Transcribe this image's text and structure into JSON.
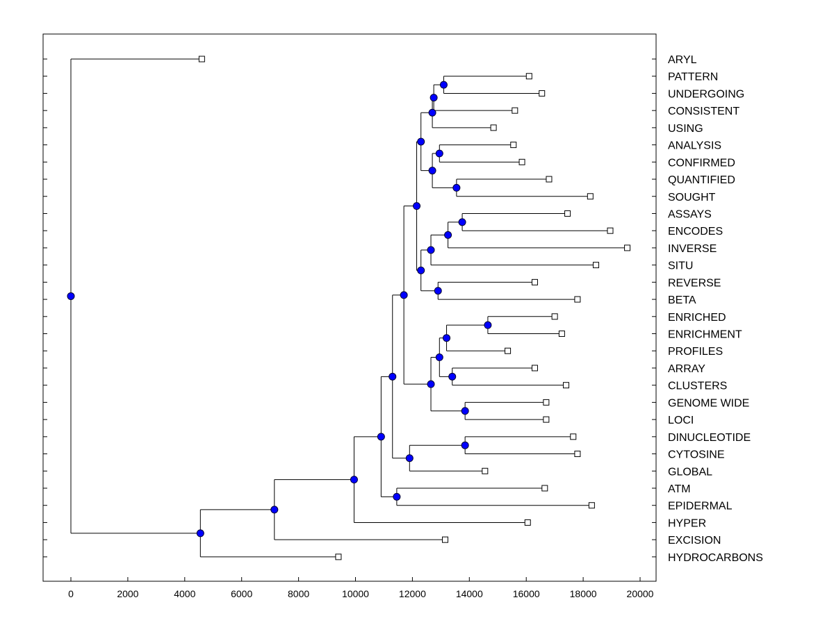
{
  "chart_data": {
    "type": "dendrogram",
    "title": "",
    "xlabel": "",
    "ylabel": "",
    "xlim": [
      -1000,
      21000
    ],
    "xticks": [
      0,
      2000,
      4000,
      6000,
      8000,
      10000,
      12000,
      14000,
      16000,
      18000,
      20000
    ],
    "grid": false,
    "leaves": [
      {
        "name": "ARYL",
        "x": 4600
      },
      {
        "name": "PATTERN",
        "x": 16100
      },
      {
        "name": "UNDERGOING",
        "x": 16550
      },
      {
        "name": "CONSISTENT",
        "x": 15600
      },
      {
        "name": "USING",
        "x": 14850
      },
      {
        "name": "ANALYSIS",
        "x": 15550
      },
      {
        "name": "CONFIRMED",
        "x": 15850
      },
      {
        "name": "QUANTIFIED",
        "x": 16800
      },
      {
        "name": "SOUGHT",
        "x": 18250
      },
      {
        "name": "ASSAYS",
        "x": 17450
      },
      {
        "name": "ENCODES",
        "x": 18950
      },
      {
        "name": "INVERSE",
        "x": 19550
      },
      {
        "name": "SITU",
        "x": 18450
      },
      {
        "name": "REVERSE",
        "x": 16300
      },
      {
        "name": "BETA",
        "x": 17800
      },
      {
        "name": "ENRICHED",
        "x": 17000
      },
      {
        "name": "ENRICHMENT",
        "x": 17250
      },
      {
        "name": "PROFILES",
        "x": 15350
      },
      {
        "name": "ARRAY",
        "x": 16300
      },
      {
        "name": "CLUSTERS",
        "x": 17400
      },
      {
        "name": "GENOME WIDE",
        "x": 16700
      },
      {
        "name": "LOCI",
        "x": 16700
      },
      {
        "name": "DINUCLEOTIDE",
        "x": 17650
      },
      {
        "name": "CYTOSINE",
        "x": 17800
      },
      {
        "name": "GLOBAL",
        "x": 14550
      },
      {
        "name": "ATM",
        "x": 16650
      },
      {
        "name": "EPIDERMAL",
        "x": 18300
      },
      {
        "name": "HYPER",
        "x": 16050
      },
      {
        "name": "EXCISION",
        "x": 13150
      },
      {
        "name": "HYDROCARBONS",
        "x": 9400
      }
    ],
    "merges": [
      {
        "id": "n1",
        "x": 13100,
        "children": [
          "PATTERN",
          "UNDERGOING"
        ]
      },
      {
        "id": "n2",
        "x": 12750,
        "children": [
          "n1",
          "CONSISTENT"
        ]
      },
      {
        "id": "n3",
        "x": 12700,
        "children": [
          "n2",
          "USING"
        ]
      },
      {
        "id": "n4",
        "x": 12950,
        "children": [
          "ANALYSIS",
          "CONFIRMED"
        ]
      },
      {
        "id": "n5",
        "x": 13550,
        "children": [
          "QUANTIFIED",
          "SOUGHT"
        ]
      },
      {
        "id": "n6",
        "x": 12700,
        "children": [
          "n4",
          "n5"
        ]
      },
      {
        "id": "n7",
        "x": 12300,
        "children": [
          "n3",
          "n6"
        ]
      },
      {
        "id": "n8",
        "x": 13750,
        "children": [
          "ASSAYS",
          "ENCODES"
        ]
      },
      {
        "id": "n9",
        "x": 13250,
        "children": [
          "n8",
          "INVERSE"
        ]
      },
      {
        "id": "n10",
        "x": 12650,
        "children": [
          "n9",
          "SITU"
        ]
      },
      {
        "id": "n11",
        "x": 12900,
        "children": [
          "REVERSE",
          "BETA"
        ]
      },
      {
        "id": "n12",
        "x": 12300,
        "children": [
          "n10",
          "n11"
        ]
      },
      {
        "id": "n13",
        "x": 12150,
        "children": [
          "n7",
          "n12"
        ]
      },
      {
        "id": "n14",
        "x": 14650,
        "children": [
          "ENRICHED",
          "ENRICHMENT"
        ]
      },
      {
        "id": "n15",
        "x": 13200,
        "children": [
          "n14",
          "PROFILES"
        ]
      },
      {
        "id": "n16",
        "x": 13400,
        "children": [
          "ARRAY",
          "CLUSTERS"
        ]
      },
      {
        "id": "n17",
        "x": 12950,
        "children": [
          "n15",
          "n16"
        ]
      },
      {
        "id": "n18",
        "x": 13850,
        "children": [
          "GENOME WIDE",
          "LOCI"
        ]
      },
      {
        "id": "n19",
        "x": 12650,
        "children": [
          "n17",
          "n18"
        ]
      },
      {
        "id": "n20",
        "x": 11700,
        "children": [
          "n13",
          "n19"
        ]
      },
      {
        "id": "n21",
        "x": 13850,
        "children": [
          "DINUCLEOTIDE",
          "CYTOSINE"
        ]
      },
      {
        "id": "n22",
        "x": 11900,
        "children": [
          "n21",
          "GLOBAL"
        ]
      },
      {
        "id": "n23",
        "x": 11300,
        "children": [
          "n20",
          "n22"
        ]
      },
      {
        "id": "n24",
        "x": 11450,
        "children": [
          "ATM",
          "EPIDERMAL"
        ]
      },
      {
        "id": "n25",
        "x": 10900,
        "children": [
          "n23",
          "n24"
        ]
      },
      {
        "id": "n26",
        "x": 9950,
        "children": [
          "n25",
          "HYPER"
        ]
      },
      {
        "id": "n27",
        "x": 7150,
        "children": [
          "n26",
          "EXCISION"
        ]
      },
      {
        "id": "n28",
        "x": 4550,
        "children": [
          "n27",
          "HYDROCARBONS"
        ]
      },
      {
        "id": "root",
        "x": 0,
        "children": [
          "ARYL",
          "n28"
        ]
      }
    ],
    "colors": {
      "node": "#0000ff",
      "node_stroke": "#000033",
      "line": "#000000",
      "leaf_fill": "#ffffff",
      "frame": "#000000"
    }
  }
}
